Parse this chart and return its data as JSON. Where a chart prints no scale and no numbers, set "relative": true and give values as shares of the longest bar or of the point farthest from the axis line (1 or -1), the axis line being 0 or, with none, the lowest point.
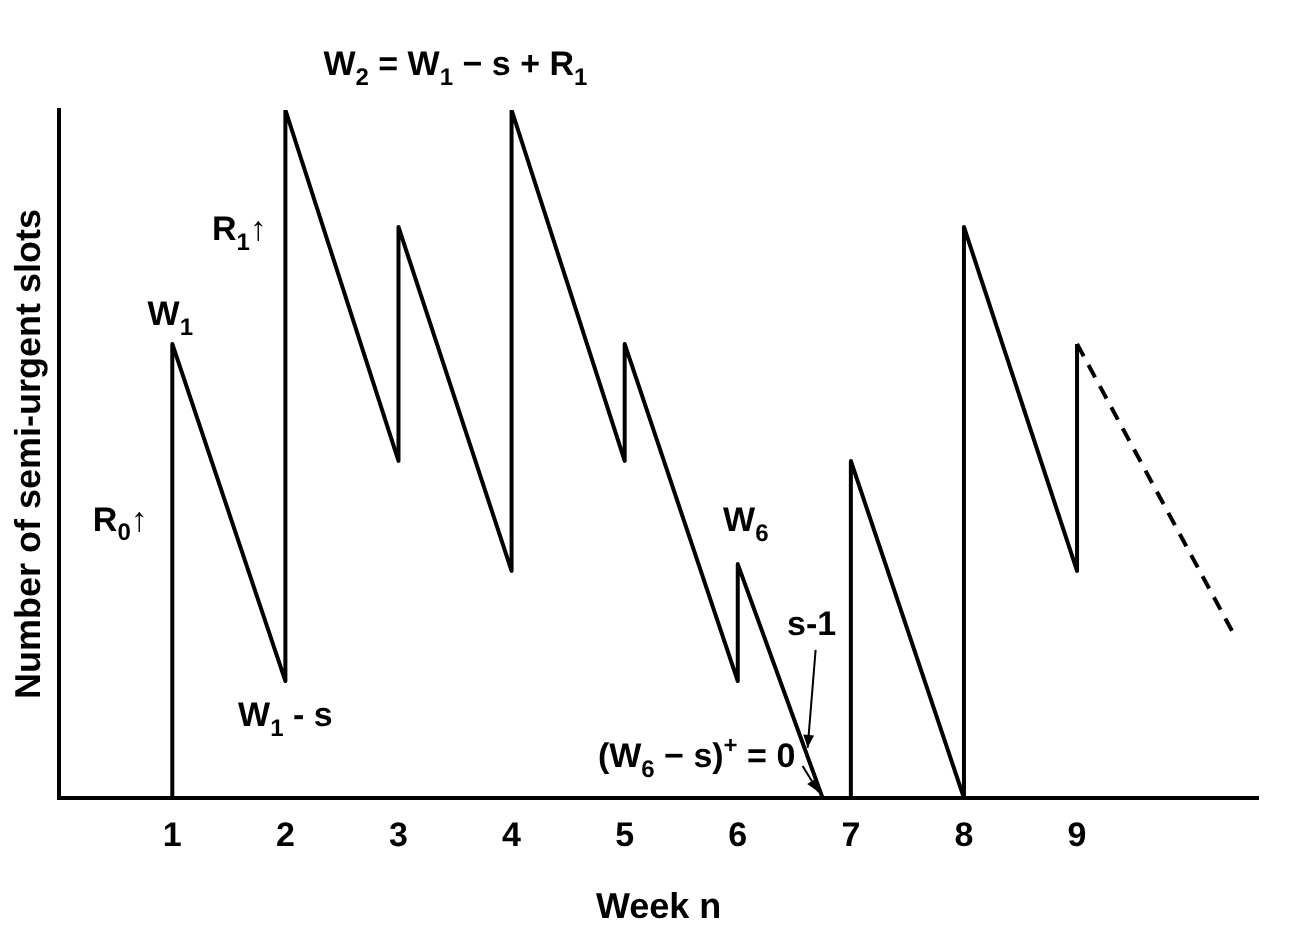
{
  "chart_data": {
    "type": "line",
    "relative": true,
    "xlabel": "Week n",
    "ylabel": "Number of semi-urgent slots",
    "xlim": [
      0,
      10.6
    ],
    "xticks": [
      1,
      2,
      3,
      4,
      5,
      6,
      7,
      8,
      9
    ],
    "grid": false,
    "legend": false,
    "marker": "none",
    "series": [
      {
        "color": "#000000",
        "line_style": "solid",
        "x": [
          1,
          1,
          2,
          2,
          3,
          3,
          4,
          4,
          5,
          5,
          6,
          6,
          6.75,
          7,
          7,
          8,
          8,
          9,
          9
        ],
        "values": [
          0,
          0.66,
          0.17,
          1,
          0.49,
          0.83,
          0.33,
          1,
          0.49,
          0.66,
          0.17,
          0.34,
          0,
          0,
          0.49,
          0,
          0.83,
          0.33,
          0.66
        ]
      },
      {
        "color": "#000000",
        "line_style": "dashed",
        "x": [
          9,
          10.38
        ],
        "values": [
          0.66,
          0.24
        ]
      }
    ],
    "annotations": [
      {
        "text": "W$_{2}$ = W$_{1}$ − s + R$_{1}$",
        "x": 2,
        "y": 1
      },
      {
        "text": "R$_{1}$↑",
        "x": 2,
        "y": 0.83
      },
      {
        "text": "W$_{1}$",
        "x": 1,
        "y": 0.66
      },
      {
        "text": "R$_{0}$↑",
        "x": 1,
        "y": 0.3
      },
      {
        "text": "W$_{1}$ - s",
        "x": 2,
        "y": 0.17
      },
      {
        "text": "W$_{6}$",
        "x": 6,
        "y": 0.34
      },
      {
        "text": "s-1",
        "x": 6.6,
        "y": 0.07
      },
      {
        "text": "(W$_{6}$ − s)$^{+}$ = 0",
        "x": 6.75,
        "y": 0
      }
    ]
  }
}
